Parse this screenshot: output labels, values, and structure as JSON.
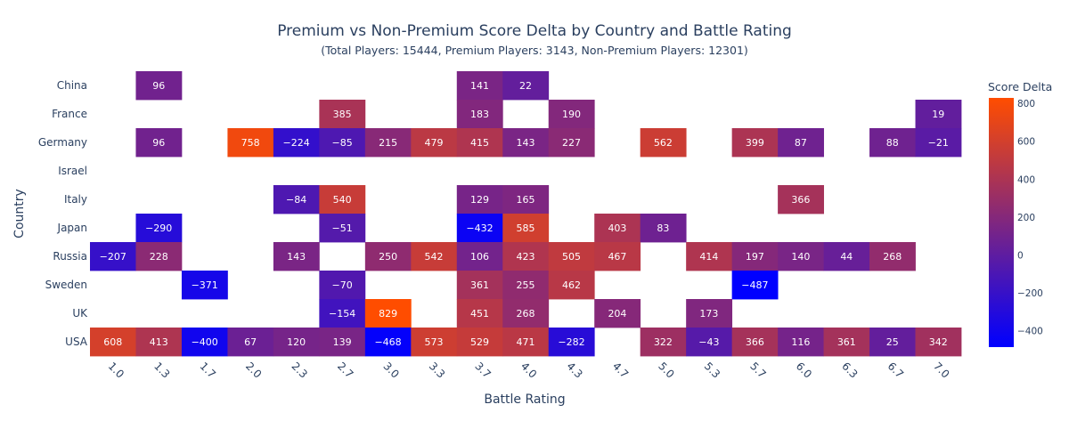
{
  "chart_data": {
    "type": "heatmap",
    "title": "Premium vs Non-Premium Score Delta by Country and Battle Rating",
    "subtitle": "(Total Players: 15444, Premium Players: 3143, Non-Premium Players: 12301)",
    "xlabel": "Battle Rating",
    "ylabel": "Country",
    "x": [
      "1.0",
      "1.3",
      "1.7",
      "2.0",
      "2.3",
      "2.7",
      "3.0",
      "3.3",
      "3.7",
      "4.0",
      "4.3",
      "4.7",
      "5.0",
      "5.3",
      "5.7",
      "6.0",
      "6.3",
      "6.7",
      "7.0"
    ],
    "y": [
      "China",
      "France",
      "Germany",
      "Israel",
      "Italy",
      "Japan",
      "Russia",
      "Sweden",
      "UK",
      "USA"
    ],
    "z": [
      [
        null,
        96,
        null,
        null,
        null,
        null,
        null,
        null,
        141,
        22,
        null,
        null,
        null,
        null,
        null,
        null,
        null,
        null,
        null
      ],
      [
        null,
        null,
        null,
        null,
        null,
        385,
        null,
        null,
        183,
        null,
        190,
        null,
        null,
        null,
        null,
        null,
        null,
        null,
        19
      ],
      [
        null,
        96,
        null,
        758,
        -224,
        -85,
        215,
        479,
        415,
        143,
        227,
        null,
        562,
        null,
        399,
        87,
        null,
        88,
        -21
      ],
      [
        null,
        null,
        null,
        null,
        null,
        null,
        null,
        null,
        null,
        null,
        null,
        null,
        null,
        null,
        null,
        null,
        null,
        null,
        null
      ],
      [
        null,
        null,
        null,
        null,
        -84,
        540,
        null,
        null,
        129,
        165,
        null,
        null,
        null,
        null,
        null,
        366,
        null,
        null,
        null
      ],
      [
        null,
        -290,
        null,
        null,
        null,
        -51,
        null,
        null,
        -432,
        585,
        null,
        403,
        83,
        null,
        null,
        null,
        null,
        null,
        null
      ],
      [
        -207,
        228,
        null,
        null,
        143,
        null,
        250,
        542,
        106,
        423,
        505,
        467,
        null,
        414,
        197,
        140,
        44,
        268,
        null
      ],
      [
        null,
        null,
        -371,
        null,
        null,
        -70,
        null,
        null,
        361,
        255,
        462,
        null,
        null,
        null,
        -487,
        null,
        null,
        null,
        null
      ],
      [
        null,
        null,
        null,
        null,
        null,
        -154,
        829,
        null,
        451,
        268,
        null,
        204,
        null,
        173,
        null,
        null,
        null,
        null,
        null
      ],
      [
        608,
        413,
        -400,
        67,
        120,
        139,
        -468,
        573,
        529,
        471,
        -282,
        null,
        322,
        -43,
        366,
        116,
        361,
        25,
        342
      ]
    ],
    "zmin": -487,
    "zmax": 829,
    "colorscale": [
      "#0000ff",
      "#ff4d00"
    ],
    "colorbar": {
      "title": "Score Delta",
      "ticks": [
        -400,
        -200,
        0,
        200,
        400,
        600,
        800
      ],
      "tick_labels": [
        "−400",
        "−200",
        "0",
        "200",
        "400",
        "600",
        "800"
      ]
    },
    "grid": false
  }
}
